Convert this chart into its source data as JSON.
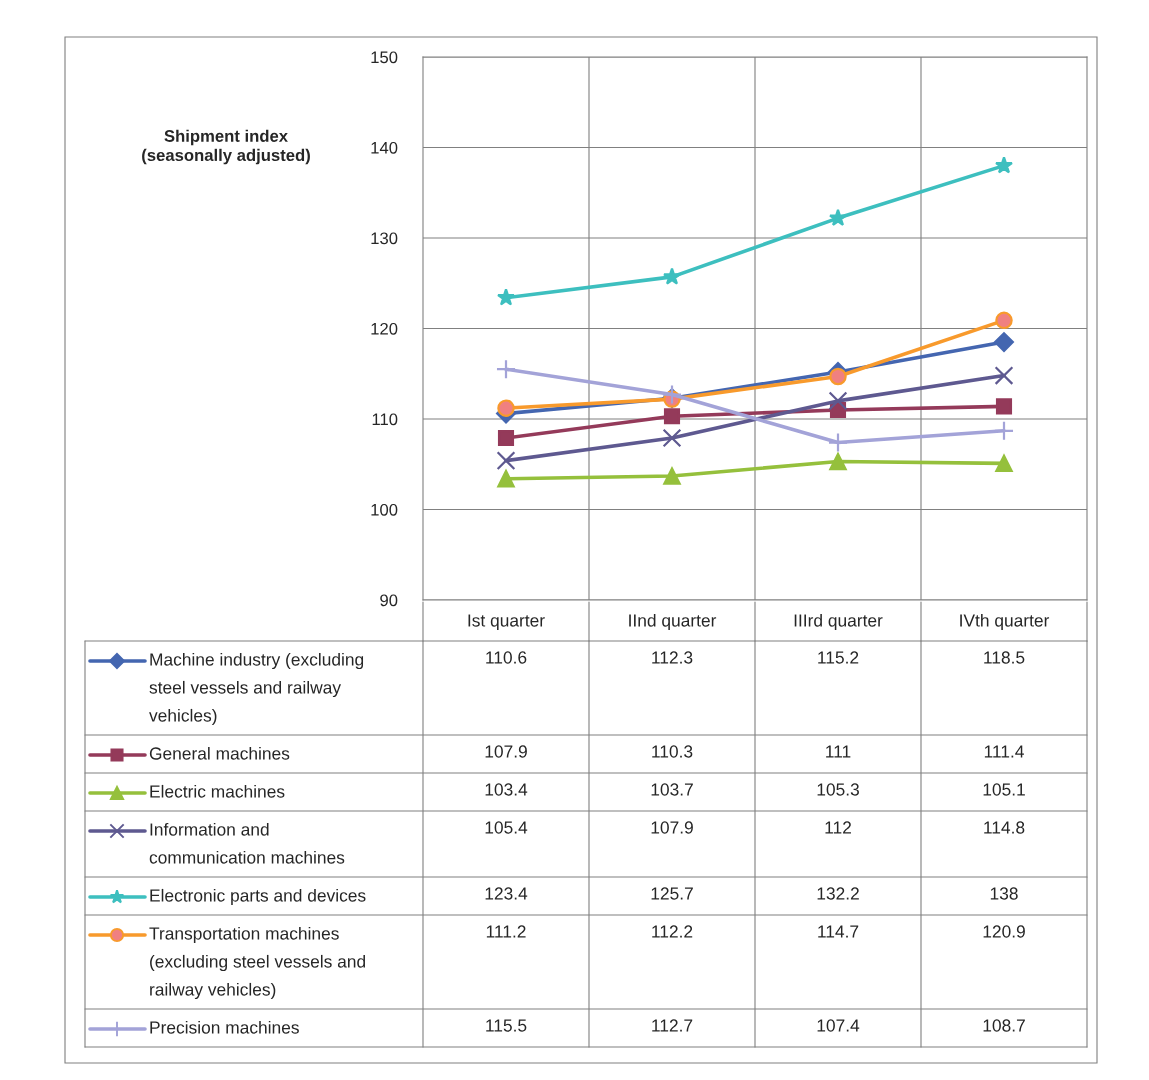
{
  "chart_data": {
    "type": "line",
    "ylabel": "Shipment index\n(seasonally adjusted)",
    "categories": [
      "Ist quarter",
      "IInd quarter",
      "IIIrd quarter",
      "IVth quarter"
    ],
    "ylim": [
      90,
      150
    ],
    "yticks": [
      90,
      100,
      110,
      120,
      130,
      140,
      150
    ],
    "grid": true,
    "legend": "bottom",
    "data_labels": true,
    "series": [
      {
        "name": "Machine industry (excluding steel vessels and railway vehicles)",
        "color": "#4466b0",
        "marker": "diamond",
        "values": [
          110.6,
          112.3,
          115.2,
          118.5
        ]
      },
      {
        "name": "General machines",
        "color": "#943a5a",
        "marker": "square",
        "values": [
          107.9,
          110.3,
          111,
          111.4
        ]
      },
      {
        "name": "Electric machines",
        "color": "#95c03c",
        "marker": "triangle",
        "values": [
          103.4,
          103.7,
          105.3,
          105.1
        ]
      },
      {
        "name": "Information and communication machines",
        "color": "#5e5990",
        "marker": "cross",
        "values": [
          105.4,
          107.9,
          112,
          114.8
        ]
      },
      {
        "name": "Electronic parts and devices",
        "color": "#3dbfbf",
        "marker": "star",
        "values": [
          123.4,
          125.7,
          132.2,
          138
        ]
      },
      {
        "name": "Transportation machines (excluding steel vessels and railway vehicles)",
        "color": "#f89a2c",
        "marker": "circle",
        "values": [
          111.2,
          112.2,
          114.7,
          120.9
        ]
      },
      {
        "name": "Precision machines",
        "color": "#a3a3d8",
        "marker": "plus",
        "values": [
          115.5,
          112.7,
          107.4,
          108.7
        ]
      }
    ]
  }
}
